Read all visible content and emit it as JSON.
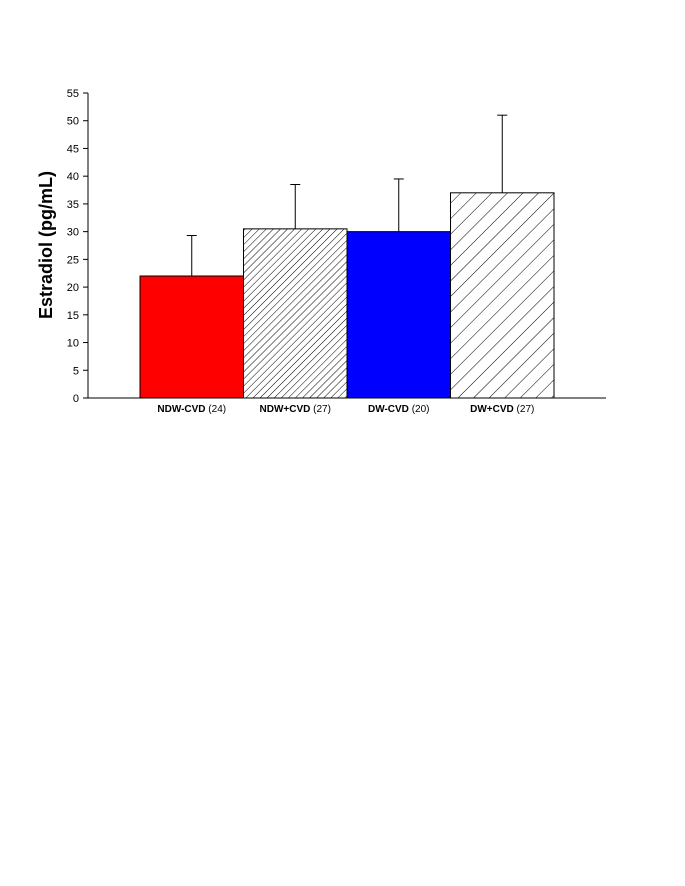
{
  "chart_data": {
    "type": "bar",
    "ylabel": "Estradiol (pg/mL)",
    "xlabel": "",
    "ylim": [
      0,
      55
    ],
    "yticks": [
      0,
      5,
      10,
      15,
      20,
      25,
      30,
      35,
      40,
      45,
      50,
      55
    ],
    "grid": false,
    "legend": "none",
    "categories": [
      {
        "name": "NDW-CVD",
        "n": "(24)",
        "value": 22.0,
        "error": 7.3,
        "fill": "solid",
        "color": "#ff0000"
      },
      {
        "name": "NDW+CVD",
        "n": "(27)",
        "value": 30.5,
        "error": 8.0,
        "fill": "dense-hatch",
        "color": "#000000"
      },
      {
        "name": "DW-CVD",
        "n": "(20)",
        "value": 30.0,
        "error": 9.5,
        "fill": "solid",
        "color": "#0000ff"
      },
      {
        "name": "DW+CVD",
        "n": "(27)",
        "value": 37.0,
        "error": 14.0,
        "fill": "sparse-hatch",
        "color": "#000000"
      }
    ]
  }
}
